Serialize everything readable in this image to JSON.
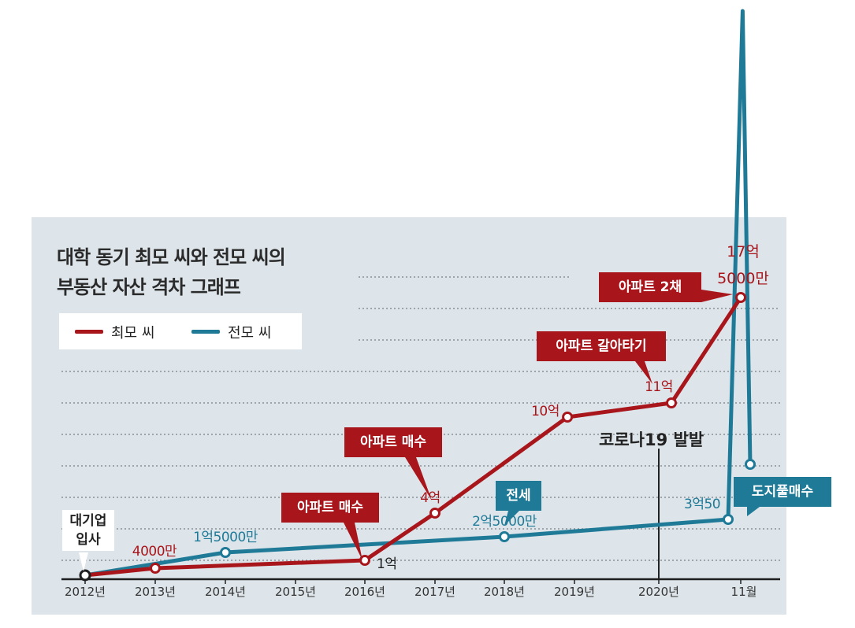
{
  "title_line1": "대학 동기 최모 씨와 전모 씨의",
  "title_line2": "부동산 자산 격차 그래프",
  "legend": [
    {
      "name": "최모 씨",
      "color": "#a8161c"
    },
    {
      "name": "전모 씨",
      "color": "#1f7a97"
    }
  ],
  "colors": {
    "choi": "#a8161c",
    "jeon": "#1f7a97",
    "panel": "#dde5ea"
  },
  "chart_data": {
    "type": "line",
    "title": "대학 동기 최모 씨와 전모 씨의 부동산 자산 격차 그래프",
    "categories": [
      "2012년",
      "2013년",
      "2014년",
      "2015년",
      "2016년",
      "2017년",
      "2018년",
      "2019년",
      "2020년",
      "11월"
    ],
    "x_values": [
      0,
      1,
      2,
      3,
      4,
      5,
      6,
      7,
      8,
      9.3
    ],
    "series": [
      {
        "name": "최모 씨",
        "points": [
          {
            "x": 0,
            "y": 0
          },
          {
            "x": 1,
            "y": 0.4
          },
          {
            "x": 4,
            "y": 1
          },
          {
            "x": 5,
            "y": 4
          },
          {
            "x": 6.9,
            "y": 10
          },
          {
            "x": 8.2,
            "y": 11
          },
          {
            "x": 9.3,
            "y": 17.5
          }
        ]
      },
      {
        "name": "전모 씨",
        "points": [
          {
            "x": 0,
            "y": 0
          },
          {
            "x": 2,
            "y": 1.5
          },
          {
            "x": 6,
            "y": 2.5
          },
          {
            "x": 9.1,
            "y": 3.5
          },
          {
            "x": 9.33,
            "y": 44
          },
          {
            "x": 9.45,
            "y": 7
          }
        ]
      }
    ],
    "data_labels": {
      "start": "대기업\n입사",
      "v2013": "4000만",
      "v2014": "1억5000만",
      "v2016": "1억",
      "v2017": "4억",
      "v2018": "2억5000만",
      "v2019": "10억",
      "v2020": "11억",
      "v_choi_end": "17억\n5000만",
      "v_jeon_end": "3억50"
    },
    "callouts": {
      "choi_buy_1": "아파트 매수",
      "choi_buy_2": "아파트 매수",
      "choi_swap": "아파트 갈아타기",
      "choi_two": "아파트 2채",
      "jeon_lease": "전세",
      "jeon_land": "도지풀매수"
    },
    "annotation_covid": "코로나19 발발",
    "ylabel": "",
    "xlabel": "",
    "grid": true,
    "legend_position": "top-left"
  }
}
